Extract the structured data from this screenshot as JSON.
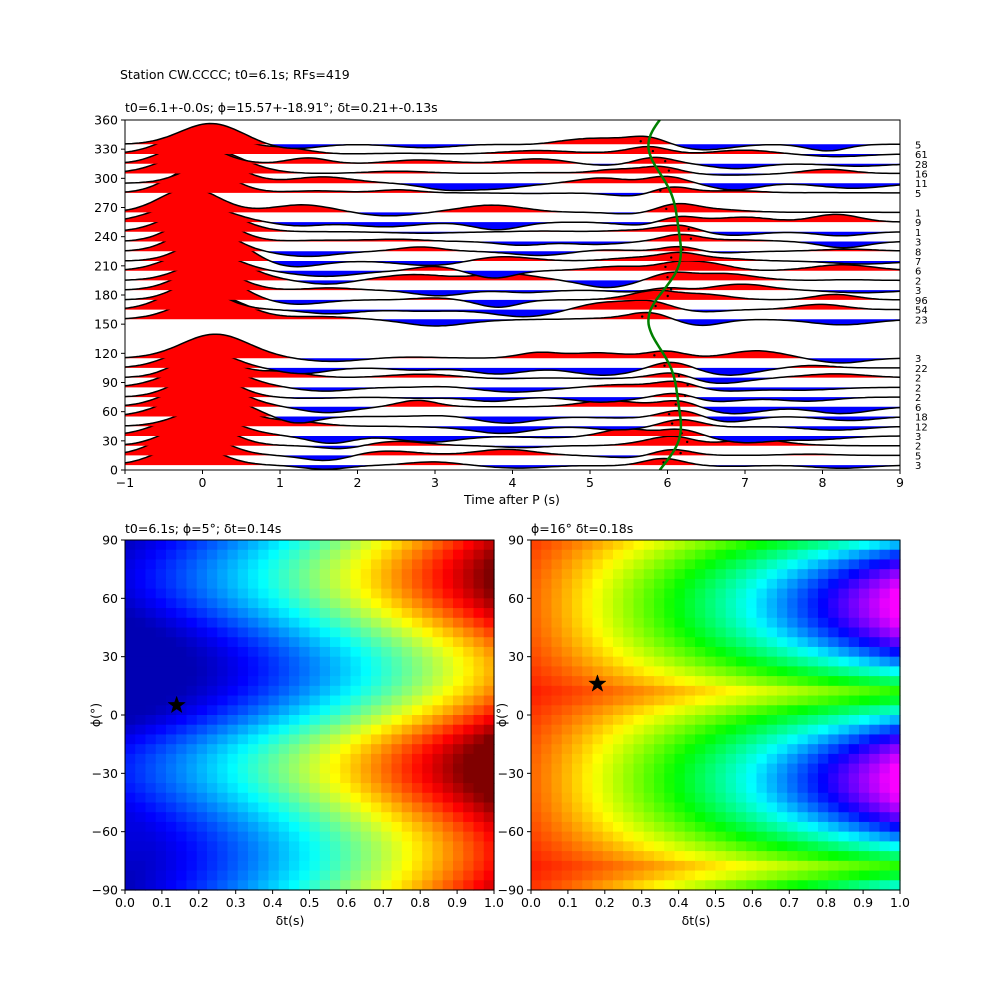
{
  "figure": {
    "suptitle": "Station CW.CCCC; t0=6.1s; RFs=419"
  },
  "chart_data": [
    {
      "type": "wiggle",
      "title": "t0=6.1+-0.0s; ϕ=15.57+-18.91°; δt=0.21+-0.13s",
      "xlabel": "Time after P (s)",
      "ylabel": "",
      "xlim": [
        -1,
        9
      ],
      "ylim": [
        0,
        360
      ],
      "xticks": [
        "−1",
        "0",
        "1",
        "2",
        "3",
        "4",
        "5",
        "6",
        "7",
        "8",
        "9"
      ],
      "yticks": [
        "0",
        "30",
        "60",
        "90",
        "120",
        "150",
        "180",
        "210",
        "240",
        "270",
        "300",
        "330",
        "360"
      ],
      "positive_fill_color": "#ff0000",
      "negative_fill_color": "#0000ff",
      "moveout_color": "#008000",
      "traces": [
        {
          "baz": 5,
          "count": "3"
        },
        {
          "baz": 15,
          "count": "5"
        },
        {
          "baz": 25,
          "count": "2"
        },
        {
          "baz": 35,
          "count": "3"
        },
        {
          "baz": 45,
          "count": "12"
        },
        {
          "baz": 55,
          "count": "18"
        },
        {
          "baz": 65,
          "count": "6"
        },
        {
          "baz": 75,
          "count": "2"
        },
        {
          "baz": 85,
          "count": "2"
        },
        {
          "baz": 95,
          "count": "2"
        },
        {
          "baz": 105,
          "count": "22"
        },
        {
          "baz": 115,
          "count": "3"
        },
        {
          "baz": 155,
          "count": "23"
        },
        {
          "baz": 165,
          "count": "54"
        },
        {
          "baz": 175,
          "count": "96"
        },
        {
          "baz": 185,
          "count": "3"
        },
        {
          "baz": 195,
          "count": "2"
        },
        {
          "baz": 205,
          "count": "6"
        },
        {
          "baz": 215,
          "count": "7"
        },
        {
          "baz": 225,
          "count": "8"
        },
        {
          "baz": 235,
          "count": "3"
        },
        {
          "baz": 245,
          "count": "1"
        },
        {
          "baz": 255,
          "count": "9"
        },
        {
          "baz": 265,
          "count": "1"
        },
        {
          "baz": 285,
          "count": "5"
        },
        {
          "baz": 295,
          "count": "11"
        },
        {
          "baz": 305,
          "count": "16"
        },
        {
          "baz": 315,
          "count": "28"
        },
        {
          "baz": 325,
          "count": "61"
        },
        {
          "baz": 335,
          "count": "5"
        }
      ]
    },
    {
      "type": "heatmap",
      "title": "t0=6.1s; ϕ=5°; δt=0.14s",
      "xlabel": "δt(s)",
      "ylabel": "ϕ(°)",
      "xlim": [
        0,
        1
      ],
      "ylim": [
        -90,
        90
      ],
      "xticks": [
        "0.0",
        "0.1",
        "0.2",
        "0.3",
        "0.4",
        "0.5",
        "0.6",
        "0.7",
        "0.8",
        "0.9",
        "1.0"
      ],
      "yticks": [
        "−90",
        "−60",
        "−30",
        "0",
        "30",
        "60",
        "90"
      ],
      "colormap": "jet",
      "best": {
        "dt": 0.14,
        "phi": 5
      }
    },
    {
      "type": "heatmap",
      "title": "ϕ=16° δt=0.18s",
      "xlabel": "δt(s)",
      "ylabel": "ϕ(°)",
      "xlim": [
        0,
        1
      ],
      "ylim": [
        -90,
        90
      ],
      "xticks": [
        "0.0",
        "0.1",
        "0.2",
        "0.3",
        "0.4",
        "0.5",
        "0.6",
        "0.7",
        "0.8",
        "0.9",
        "1.0"
      ],
      "yticks": [
        "−90",
        "−60",
        "−30",
        "0",
        "30",
        "60",
        "90"
      ],
      "colormap": "hsv",
      "best": {
        "dt": 0.18,
        "phi": 16
      }
    }
  ]
}
